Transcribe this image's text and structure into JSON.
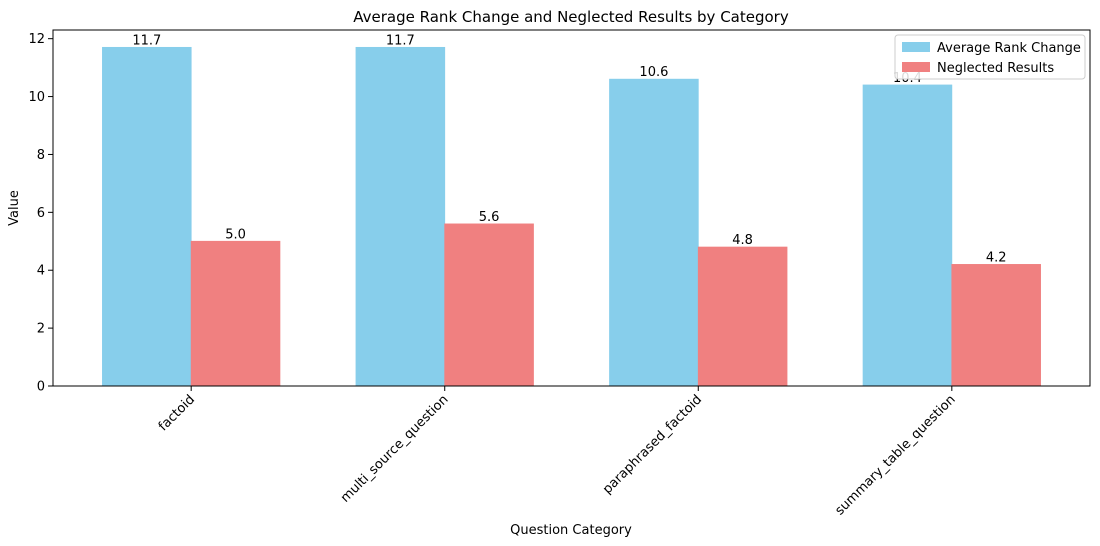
{
  "chart_data": {
    "type": "bar",
    "title": "Average Rank Change and Neglected Results by Category",
    "xlabel": "Question Category",
    "ylabel": "Value",
    "categories": [
      "factoid",
      "multi_source_question",
      "paraphrased_factoid",
      "summary_table_question"
    ],
    "series": [
      {
        "name": "Average Rank Change",
        "values": [
          11.7,
          11.7,
          10.6,
          10.4
        ],
        "labels": [
          "11.7",
          "11.7",
          "10.6",
          "10.4"
        ],
        "color": "#87CEEB"
      },
      {
        "name": "Neglected Results",
        "values": [
          5.0,
          5.6,
          4.8,
          4.2
        ],
        "labels": [
          "5.0",
          "5.6",
          "4.8",
          "4.2"
        ],
        "color": "#F08080"
      }
    ],
    "ylim": [
      0,
      12.3
    ],
    "yticks": [
      0,
      2,
      4,
      6,
      8,
      10,
      12
    ],
    "grid": false,
    "legend_position": "top-right"
  }
}
